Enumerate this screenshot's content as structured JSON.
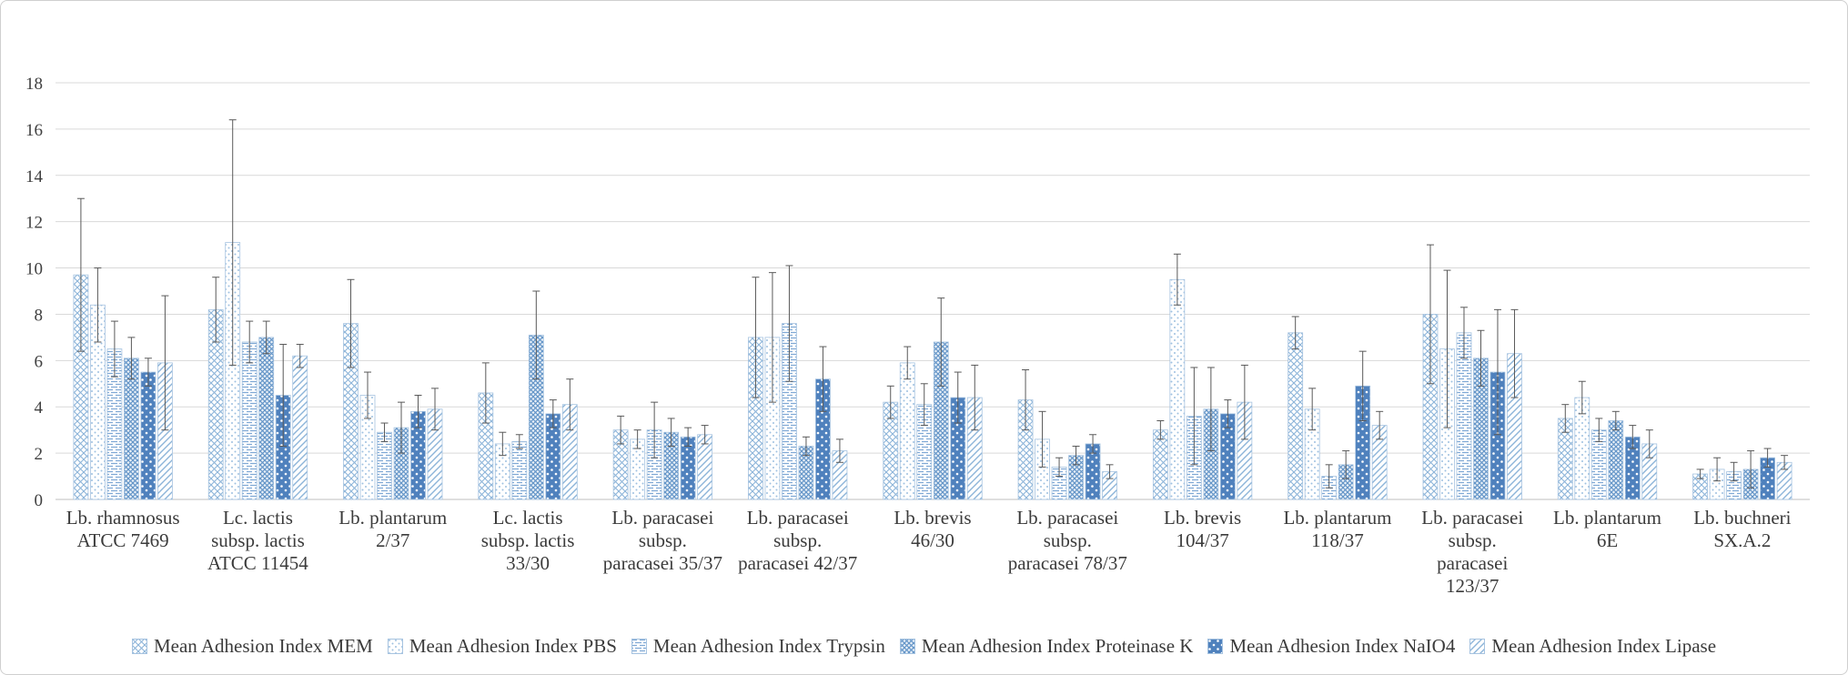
{
  "figure": {
    "background": "#ffffff",
    "border_color": "#cfcfcf"
  },
  "chart_data": {
    "type": "bar",
    "title": "",
    "xlabel": "",
    "ylabel": "",
    "ylim": [
      0,
      18
    ],
    "yticks": [
      0,
      2,
      4,
      6,
      8,
      10,
      12,
      14,
      16,
      18
    ],
    "grid": true,
    "legend_position": "bottom",
    "error_bars": true,
    "gridline_color": "#d9d9d9",
    "axis_color": "#bfbfbf",
    "error_bar_color": "#595959",
    "text_color": "#3b3b3b",
    "bar_outline_color": "#a6c3e0",
    "series_base_colors": [
      "#8cb4d9",
      "#9dc0e0",
      "#7fa8d4",
      "#6495c8",
      "#4f81bd",
      "#8cb4d9"
    ],
    "categories": [
      "Lb. rhamnosus ATCC 7469",
      "Lc. lactis subsp. lactis ATCC 11454",
      "Lb. plantarum 2/37",
      "Lc. lactis subsp. lactis 33/30",
      "Lb. paracasei subsp. paracasei 35/37",
      "Lb. paracasei subsp. paracasei 42/37",
      "Lb. brevis 46/30",
      "Lb. paracasei subsp. paracasei 78/37",
      "Lb. brevis 104/37",
      "Lb. plantarum 118/37",
      "Lb. paracasei subsp. paracasei 123/37",
      "Lb. plantarum 6E",
      "Lb. buchneri SX.A.2"
    ],
    "category_label_lines": [
      [
        "Lb. rhamnosus",
        "ATCC 7469"
      ],
      [
        "Lc. lactis",
        "subsp. lactis",
        "ATCC 11454"
      ],
      [
        "Lb. plantarum",
        "2/37"
      ],
      [
        "Lc. lactis",
        "subsp. lactis",
        "33/30"
      ],
      [
        "Lb. paracasei",
        "subsp.",
        "paracasei 35/37"
      ],
      [
        "Lb. paracasei",
        "subsp.",
        "paracasei 42/37"
      ],
      [
        "Lb. brevis",
        "46/30"
      ],
      [
        "Lb. paracasei",
        "subsp.",
        "paracasei 78/37"
      ],
      [
        "Lb. brevis",
        "104/37"
      ],
      [
        "Lb. plantarum",
        "118/37"
      ],
      [
        "Lb. paracasei",
        "subsp.",
        "paracasei",
        "123/37"
      ],
      [
        "Lb. plantarum",
        "6E"
      ],
      [
        "Lb. buchneri",
        "SX.A.2"
      ]
    ],
    "series": [
      {
        "name": "Mean Adhesion Index MEM",
        "pattern": "diagonal-crosshatch-light",
        "values": [
          9.7,
          8.2,
          7.6,
          4.6,
          3.0,
          7.0,
          4.2,
          4.3,
          3.0,
          7.2,
          8.0,
          3.5,
          1.1
        ],
        "errors": [
          3.3,
          1.4,
          1.9,
          1.3,
          0.6,
          2.6,
          0.7,
          1.3,
          0.4,
          0.7,
          3.0,
          0.6,
          0.2
        ]
      },
      {
        "name": "Mean Adhesion Index PBS",
        "pattern": "dots-light",
        "values": [
          8.4,
          11.1,
          4.5,
          2.4,
          2.6,
          7.0,
          5.9,
          2.6,
          9.5,
          3.9,
          6.5,
          4.4,
          1.3
        ],
        "errors": [
          1.6,
          5.3,
          1.0,
          0.5,
          0.4,
          2.8,
          0.7,
          1.2,
          1.1,
          0.9,
          3.4,
          0.7,
          0.5
        ]
      },
      {
        "name": "Mean Adhesion Index Trypsin",
        "pattern": "horizontal-dashes",
        "values": [
          6.5,
          6.8,
          2.9,
          2.5,
          3.0,
          7.6,
          4.1,
          1.4,
          3.6,
          1.0,
          7.2,
          3.0,
          1.2
        ],
        "errors": [
          1.2,
          0.9,
          0.4,
          0.3,
          1.2,
          2.5,
          0.9,
          0.4,
          2.1,
          0.5,
          1.1,
          0.5,
          0.4
        ]
      },
      {
        "name": "Mean Adhesion Index Proteinase K",
        "pattern": "dense-diagonal-weave",
        "values": [
          6.1,
          7.0,
          3.1,
          7.1,
          2.9,
          2.3,
          6.8,
          1.9,
          3.9,
          1.5,
          6.1,
          3.4,
          1.3
        ],
        "errors": [
          0.9,
          0.7,
          1.1,
          1.9,
          0.6,
          0.4,
          1.9,
          0.4,
          1.8,
          0.6,
          1.2,
          0.4,
          0.8
        ]
      },
      {
        "name": "Mean Adhesion Index NaIO4",
        "pattern": "solid-blue-white-dots",
        "values": [
          5.5,
          4.5,
          3.8,
          3.7,
          2.7,
          5.2,
          4.4,
          2.4,
          3.7,
          4.9,
          5.5,
          2.7,
          1.8
        ],
        "errors": [
          0.6,
          2.2,
          0.7,
          0.6,
          0.4,
          1.4,
          1.1,
          0.4,
          0.6,
          1.5,
          2.7,
          0.5,
          0.4
        ]
      },
      {
        "name": "Mean Adhesion Index Lipase",
        "pattern": "diagonal-stripes-light",
        "values": [
          5.9,
          6.2,
          3.9,
          4.1,
          2.8,
          2.1,
          4.4,
          1.2,
          4.2,
          3.2,
          6.3,
          2.4,
          1.6
        ],
        "errors": [
          2.9,
          0.5,
          0.9,
          1.1,
          0.4,
          0.5,
          1.4,
          0.3,
          1.6,
          0.6,
          1.9,
          0.6,
          0.3
        ]
      }
    ]
  }
}
